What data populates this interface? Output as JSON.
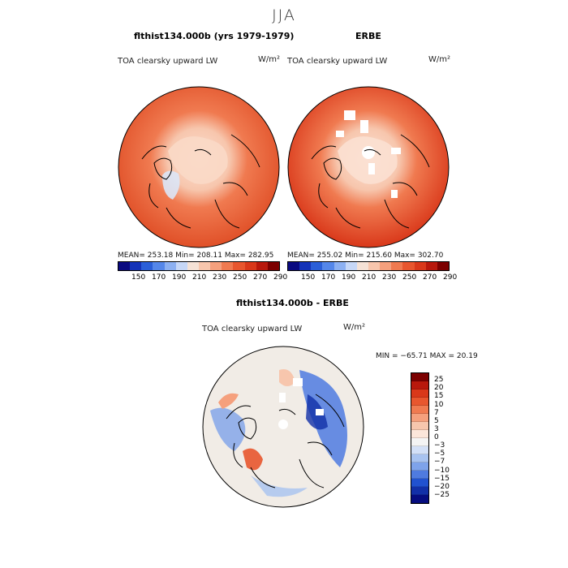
{
  "season": "JJA",
  "panel_left": {
    "title": "flthist134.000b (yrs 1979-1979)",
    "subtitle": "TOA clearsky upward LW",
    "units": "W/m²",
    "stats": "MEAN= 253.18   Min= 208.11   Max= 282.95"
  },
  "panel_right": {
    "title": "ERBE",
    "subtitle": "TOA clearsky upward LW",
    "units": "W/m²",
    "stats": "MEAN= 255.02   Min= 215.60   Max= 302.70"
  },
  "panel_diff": {
    "title": "flthist134.000b - ERBE",
    "subtitle": "TOA clearsky upward LW",
    "units": "W/m²",
    "stats": "MIN = −65.71  MAX =  20.19"
  },
  "colorbar_abs": {
    "labels": [
      "150",
      "170",
      "190",
      "210",
      "230",
      "250",
      "270",
      "290"
    ],
    "colors": [
      "#0a0a80",
      "#1533b8",
      "#2b5fd8",
      "#5587ea",
      "#8cb0f2",
      "#c6d7f7",
      "#f5e2d6",
      "#f7c6ad",
      "#f5a07d",
      "#f07a50",
      "#e8562e",
      "#d9381a",
      "#b8180c",
      "#7c0000"
    ]
  },
  "colorbar_diff": {
    "labels": [
      "25",
      "20",
      "15",
      "10",
      "7",
      "5",
      "3",
      "0",
      "−3",
      "−5",
      "−7",
      "−10",
      "−15",
      "−20",
      "−25"
    ],
    "colors": [
      "#7c0000",
      "#b8180c",
      "#d9381a",
      "#e8562e",
      "#f07a50",
      "#f5a07d",
      "#f7c6ad",
      "#fbe6da",
      "#f4f4f4",
      "#d3e0f7",
      "#a8c3f0",
      "#7ea3ea",
      "#4f7be0",
      "#2152d0",
      "#1230a8",
      "#060d80"
    ]
  }
}
